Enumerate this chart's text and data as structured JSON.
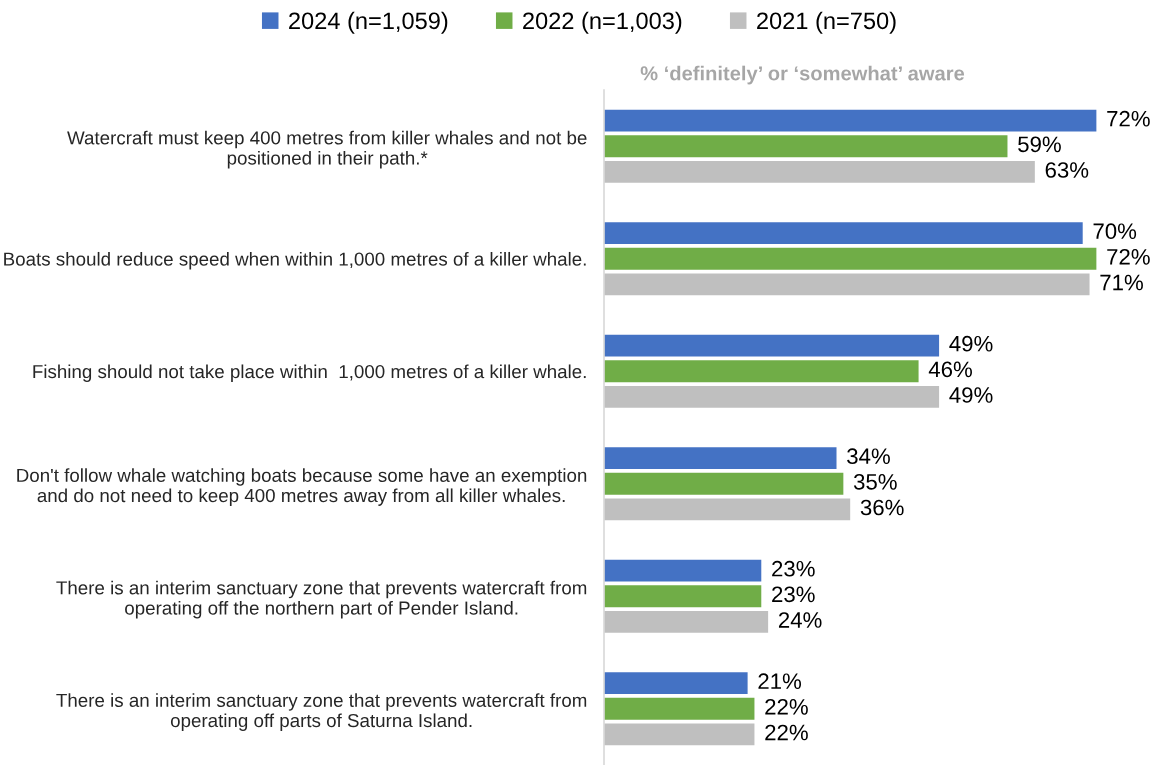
{
  "chart_data": {
    "type": "bar",
    "orientation": "horizontal",
    "title": "% ‘definitely’ or ‘somewhat’ aware",
    "categories": [
      "Watercraft must keep 400 metres from killer whales and not be\npositioned in their path.*",
      "Boats should reduce speed when within 1,000 metres of a killer whale.",
      "Fishing should not take place within  1,000 metres of a killer whale.",
      "Don't follow whale watching boats because some have an exemption\nand do not need to keep 400 metres away from all killer whales.",
      "There is an interim sanctuary zone that prevents watercraft from\noperating off the northern part of Pender Island.",
      "There is an interim sanctuary zone that prevents watercraft from\noperating off parts of Saturna Island."
    ],
    "series": [
      {
        "name": "2024 (n=1,059)",
        "color": "#4472c4",
        "values": [
          72,
          70,
          49,
          34,
          23,
          21
        ],
        "value_labels": [
          "72%",
          "70%",
          "49%",
          "34%",
          "23%",
          "21%"
        ]
      },
      {
        "name": "2022 (n=1,003)",
        "color": "#70ad47",
        "values": [
          59,
          72,
          46,
          35,
          23,
          22
        ],
        "value_labels": [
          "59%",
          "72%",
          "46%",
          "35%",
          "23%",
          "22%"
        ]
      },
      {
        "name": "2021 (n=750)",
        "color": "#bfbfbf",
        "values": [
          63,
          71,
          49,
          36,
          24,
          22
        ],
        "value_labels": [
          "63%",
          "71%",
          "49%",
          "36%",
          "24%",
          "22%"
        ]
      }
    ],
    "legend": "top",
    "tick_labels": "y"
  }
}
